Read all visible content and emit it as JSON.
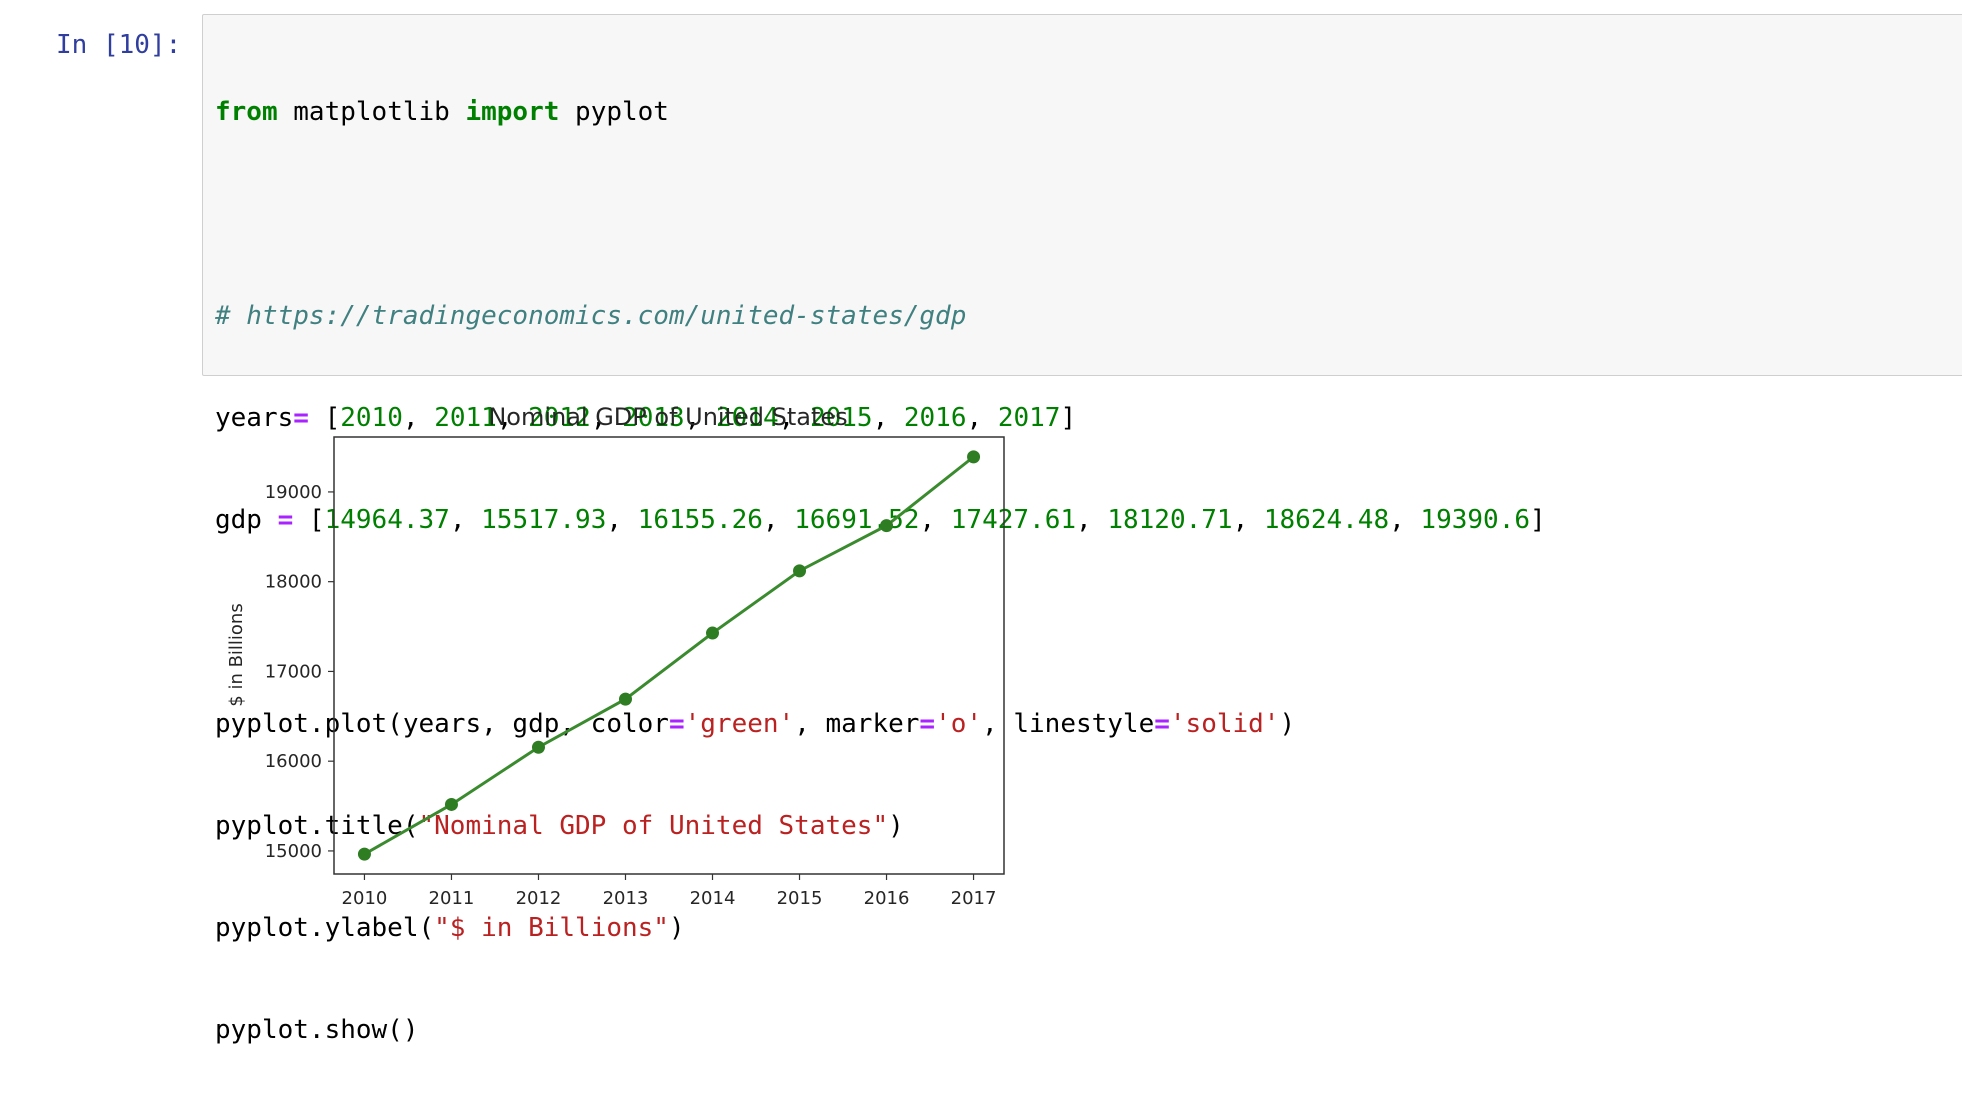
{
  "cell": {
    "prompt": "In [10]:",
    "code": {
      "line1": {
        "kw1": "from",
        "mod": " matplotlib ",
        "kw2": "import",
        "name": " pyplot"
      },
      "comment": "# https://tradingeconomics.com/united-states/gdp",
      "years_var": "years",
      "years_vals": [
        "2010",
        "2011",
        "2012",
        "2013",
        "2014",
        "2015",
        "2016",
        "2017"
      ],
      "gdp_var": "gdp",
      "gdp_vals": [
        "14964.37",
        "15517.93",
        "16155.26",
        "16691.52",
        "17427.61",
        "18120.71",
        "18624.48",
        "19390.6"
      ],
      "plot_call": {
        "head": "pyplot.plot(years, gdp, color",
        "color": "'green'",
        "mid1": ", marker",
        "marker": "'o'",
        "mid2": ", linestyle",
        "linestyle": "'solid'",
        "tail": ")"
      },
      "title_call": {
        "head": "pyplot.title(",
        "arg": "\"Nominal GDP of United States\"",
        "tail": ")"
      },
      "ylabel_call": {
        "head": "pyplot.ylabel(",
        "arg": "\"$ in Billions\"",
        "tail": ")"
      },
      "show_call": "pyplot.show()"
    }
  },
  "colors": {
    "line": "#3a8a2e",
    "marker": "#2e7d22"
  },
  "chart_data": {
    "type": "line",
    "title": "Nominal GDP of United States",
    "xlabel": "",
    "ylabel": "$ in Billions",
    "x": [
      2010,
      2011,
      2012,
      2013,
      2014,
      2015,
      2016,
      2017
    ],
    "series": [
      {
        "values": [
          14964.37,
          15517.93,
          16155.26,
          16691.52,
          17427.61,
          18120.71,
          18624.48,
          19390.6
        ]
      }
    ],
    "xticks": [
      "2010",
      "2011",
      "2012",
      "2013",
      "2014",
      "2015",
      "2016",
      "2017"
    ],
    "yticks": [
      "15000",
      "16000",
      "17000",
      "18000",
      "19000"
    ],
    "xlim": [
      2009.65,
      2017.35
    ],
    "ylim": [
      14743,
      19612
    ],
    "grid": false,
    "legend": "none"
  }
}
